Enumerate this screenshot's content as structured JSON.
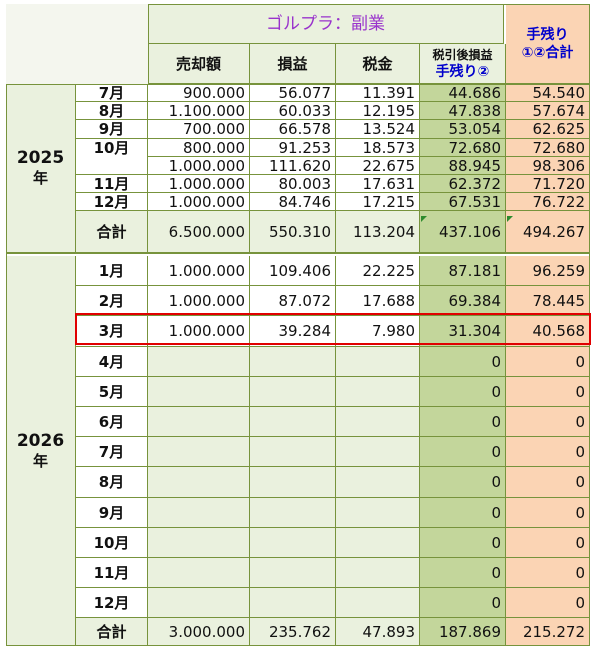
{
  "header": {
    "title": "ゴルプラ：副業",
    "col_sale": "売却額",
    "col_pl": "損益",
    "col_tax": "税金",
    "col_after_tax_line1": "税引後損益",
    "col_after_tax_line2": "手残り②",
    "col_net_line1": "手残り",
    "col_net_line2": "①②合計"
  },
  "y2025": {
    "year": "2025",
    "year_suffix": "年",
    "rows": [
      {
        "month": "7月",
        "sale": "900.000",
        "pl": "56.077",
        "tax": "11.391",
        "after": "44.686",
        "net": "54.540"
      },
      {
        "month": "8月",
        "sale": "1.100.000",
        "pl": "60.033",
        "tax": "12.195",
        "after": "47.838",
        "net": "57.674"
      },
      {
        "month": "9月",
        "sale": "700.000",
        "pl": "66.578",
        "tax": "13.524",
        "after": "53.054",
        "net": "62.625"
      },
      {
        "month": "10月",
        "sale": "800.000",
        "pl": "91.253",
        "tax": "18.573",
        "after": "72.680",
        "net": "72.680"
      },
      {
        "month": "",
        "sale": "1.000.000",
        "pl": "111.620",
        "tax": "22.675",
        "after": "88.945",
        "net": "98.306"
      },
      {
        "month": "11月",
        "sale": "1.000.000",
        "pl": "80.003",
        "tax": "17.631",
        "after": "62.372",
        "net": "71.720"
      },
      {
        "month": "12月",
        "sale": "1.000.000",
        "pl": "84.746",
        "tax": "17.215",
        "after": "67.531",
        "net": "76.722"
      }
    ],
    "total": {
      "label": "合計",
      "sale": "6.500.000",
      "pl": "550.310",
      "tax": "113.204",
      "after": "437.106",
      "net": "494.267"
    }
  },
  "y2026": {
    "year": "2026",
    "year_suffix": "年",
    "rows": [
      {
        "month": "1月",
        "sale": "1.000.000",
        "pl": "109.406",
        "tax": "22.225",
        "after": "87.181",
        "net": "96.259"
      },
      {
        "month": "2月",
        "sale": "1.000.000",
        "pl": "87.072",
        "tax": "17.688",
        "after": "69.384",
        "net": "78.445"
      },
      {
        "month": "3月",
        "sale": "1.000.000",
        "pl": "39.284",
        "tax": "7.980",
        "after": "31.304",
        "net": "40.568"
      },
      {
        "month": "4月",
        "sale": "",
        "pl": "",
        "tax": "",
        "after": "0",
        "net": "0"
      },
      {
        "month": "5月",
        "sale": "",
        "pl": "",
        "tax": "",
        "after": "0",
        "net": "0"
      },
      {
        "month": "6月",
        "sale": "",
        "pl": "",
        "tax": "",
        "after": "0",
        "net": "0"
      },
      {
        "month": "7月",
        "sale": "",
        "pl": "",
        "tax": "",
        "after": "0",
        "net": "0"
      },
      {
        "month": "8月",
        "sale": "",
        "pl": "",
        "tax": "",
        "after": "0",
        "net": "0"
      },
      {
        "month": "9月",
        "sale": "",
        "pl": "",
        "tax": "",
        "after": "0",
        "net": "0"
      },
      {
        "month": "10月",
        "sale": "",
        "pl": "",
        "tax": "",
        "after": "0",
        "net": "0"
      },
      {
        "month": "11月",
        "sale": "",
        "pl": "",
        "tax": "",
        "after": "0",
        "net": "0"
      },
      {
        "month": "12月",
        "sale": "",
        "pl": "",
        "tax": "",
        "after": "0",
        "net": "0"
      }
    ],
    "total": {
      "label": "合計",
      "sale": "3.000.000",
      "pl": "235.762",
      "tax": "47.893",
      "after": "187.869",
      "net": "215.272"
    }
  },
  "highlight": {
    "row": "3月"
  },
  "colors": {
    "grid": "#77933c",
    "green": "#c3d69b",
    "peach": "#fbd4b4",
    "plain": "#eaf1de",
    "highlight": "#e00000"
  }
}
